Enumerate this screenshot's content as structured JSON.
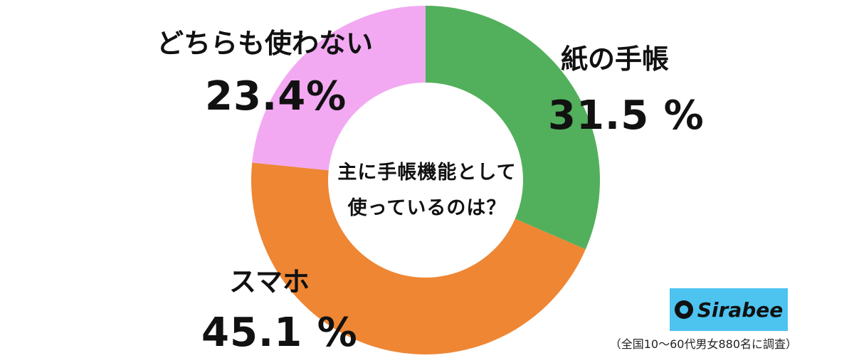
{
  "chart_data": {
    "type": "pie",
    "categories": [
      "紙の手帳",
      "スマホ",
      "どちらも使わない"
    ],
    "values": [
      31.5,
      45.1,
      23.4
    ],
    "value_labels": [
      "31.5 %",
      "45.1 %",
      "23.4%"
    ],
    "colors": [
      "#52b05c",
      "#ee8634",
      "#f2a9f2"
    ],
    "center_text": [
      "主に手帳機能として",
      "使っているのは？"
    ]
  },
  "logo": {
    "text": "Sirabee"
  },
  "footnote": "（全国10〜60代男女880名に調査）"
}
